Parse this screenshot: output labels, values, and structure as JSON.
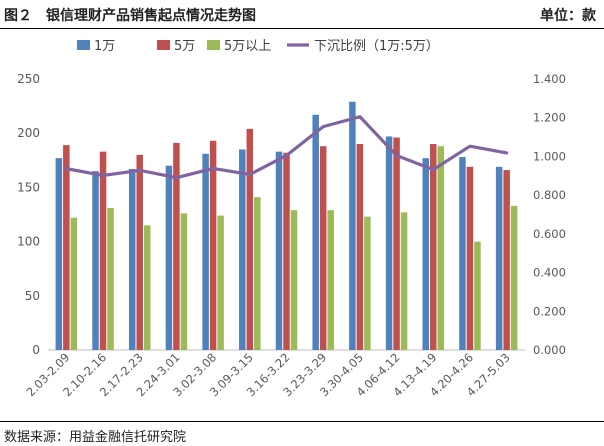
{
  "header": {
    "title": "图２　银信理财产品销售起点情况走势图",
    "unit": "单位：款"
  },
  "footer": {
    "source": "数据来源：用益金融信托研究院"
  },
  "colors": {
    "series_1wan": "#4F81BD",
    "series_5wan": "#C0504D",
    "series_5wan_plus": "#9BBB59",
    "ratio_line": "#8064A2",
    "axis_text": "#595959",
    "axis_line": "#bfbfbf"
  },
  "chart_data": {
    "type": "bar",
    "title": "",
    "xlabel": "",
    "ylabel": "",
    "legend_position": "top",
    "categories": [
      "2.03-2.09",
      "2.10-2.16",
      "2.17-2.23",
      "2.24-3.01",
      "3.02-3.08",
      "3.09-3.15",
      "3.16-3.22",
      "3.23-3.29",
      "3.30-4.05",
      "4.06-4.12",
      "4.13-4.19",
      "4.20-4.26",
      "4.27-5.03"
    ],
    "series": [
      {
        "name": "1万",
        "type": "bar",
        "axis": "left",
        "values": [
          177,
          165,
          167,
          170,
          181,
          185,
          183,
          217,
          229,
          197,
          177,
          178,
          169
        ]
      },
      {
        "name": "5万",
        "type": "bar",
        "axis": "left",
        "values": [
          189,
          183,
          180,
          191,
          193,
          204,
          182,
          188,
          190,
          196,
          190,
          169,
          166
        ]
      },
      {
        "name": "5万以上",
        "type": "bar",
        "axis": "left",
        "values": [
          122,
          131,
          115,
          126,
          124,
          141,
          129,
          129,
          123,
          127,
          188,
          100,
          133
        ]
      },
      {
        "name": "下沉比例（1万:5万）",
        "type": "line",
        "axis": "right",
        "values": [
          0.937,
          0.902,
          0.928,
          0.89,
          0.938,
          0.907,
          1.005,
          1.154,
          1.205,
          1.005,
          0.932,
          1.053,
          1.018
        ]
      }
    ],
    "y_left": {
      "min": 0,
      "max": 250,
      "ticks": [
        "0",
        "50",
        "100",
        "150",
        "200",
        "250"
      ]
    },
    "y_right": {
      "min": 0,
      "max": 1.4,
      "ticks": [
        "0.000",
        "0.200",
        "0.400",
        "0.600",
        "0.800",
        "1.000",
        "1.200",
        "1.400"
      ]
    },
    "grid": false
  }
}
